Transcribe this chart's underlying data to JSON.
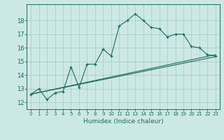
{
  "xlabel": "Humidex (Indice chaleur)",
  "ylabel": "",
  "bg_color": "#cce8e4",
  "grid_color": "#aacfcc",
  "line_color": "#1a6b60",
  "xlim": [
    -0.5,
    23.5
  ],
  "ylim": [
    11.5,
    19.2
  ],
  "xticks": [
    0,
    1,
    2,
    3,
    4,
    5,
    6,
    7,
    8,
    9,
    10,
    11,
    12,
    13,
    14,
    15,
    16,
    17,
    18,
    19,
    20,
    21,
    22,
    23
  ],
  "yticks": [
    12,
    13,
    14,
    15,
    16,
    17,
    18
  ],
  "main_x": [
    0,
    1,
    2,
    3,
    4,
    5,
    6,
    7,
    8,
    9,
    10,
    11,
    12,
    13,
    14,
    15,
    16,
    17,
    18,
    19,
    20,
    21,
    22,
    23
  ],
  "main_y": [
    12.6,
    13.0,
    12.2,
    12.7,
    12.8,
    14.6,
    13.1,
    14.8,
    14.8,
    15.9,
    15.4,
    17.6,
    18.0,
    18.5,
    18.0,
    17.5,
    17.4,
    16.8,
    17.0,
    17.0,
    16.1,
    16.0,
    15.5,
    15.4
  ],
  "line2_x": [
    0,
    23
  ],
  "line2_y": [
    12.6,
    15.5
  ],
  "line3_x": [
    0,
    23
  ],
  "line3_y": [
    12.6,
    15.35
  ]
}
